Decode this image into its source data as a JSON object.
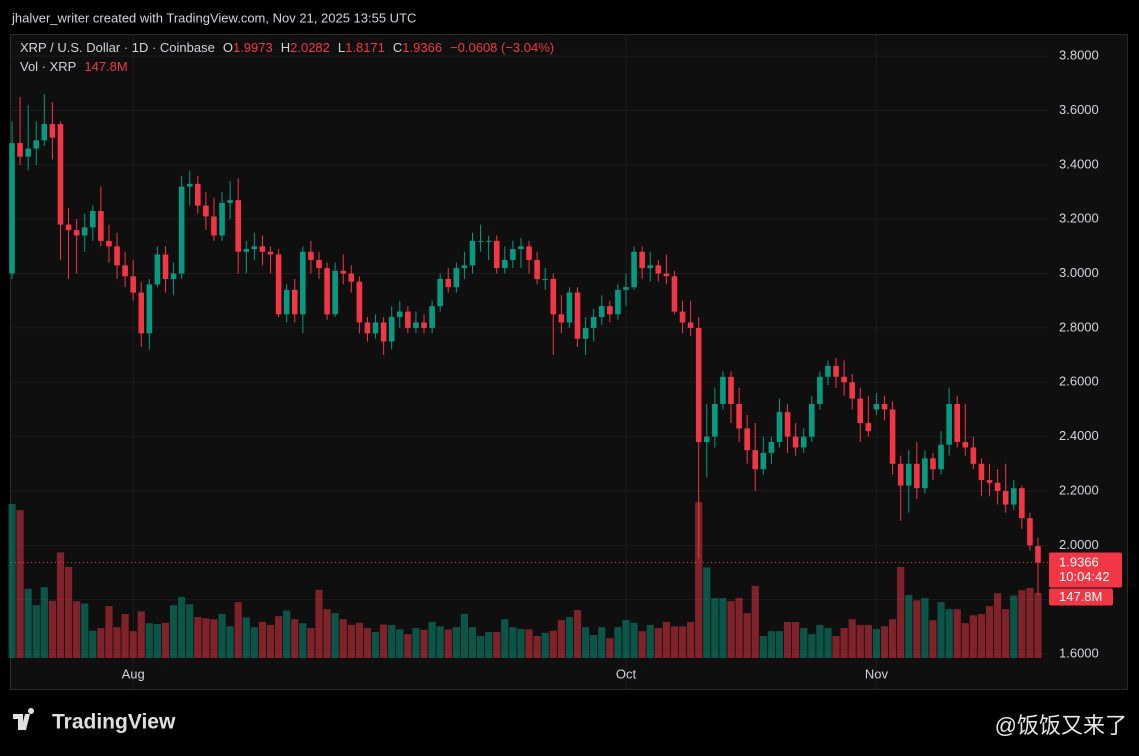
{
  "header": {
    "credit": "jhalver_writer created with TradingView.com, Nov 21, 2025 13:55 UTC"
  },
  "footer": {
    "logo": "TradingView",
    "watermark": "@饭饭又来了"
  },
  "chart_data": {
    "type": "candlestick",
    "title": "XRP / U.S. Dollar · 1D · Coinbase",
    "ohlc_labels": [
      "O",
      "H",
      "L",
      "C"
    ],
    "change_label": "−0.0608 (−3.04%)",
    "volume_title": "Vol · XRP",
    "volume_label": "147.8M",
    "countdown": "10:04:42",
    "up_color": "#089981",
    "down_color": "#f23645",
    "grid": true,
    "ylim": [
      1.475,
      3.874
    ],
    "yticks": [
      {
        "value": 1.6,
        "label": "1.6000"
      },
      {
        "value": 1.8,
        "label": "1.8000"
      },
      {
        "value": 2.0,
        "label": "2.0000"
      },
      {
        "value": 2.2,
        "label": "2.2000"
      },
      {
        "value": 2.4,
        "label": "2.4000"
      },
      {
        "value": 2.6,
        "label": "2.6000"
      },
      {
        "value": 2.8,
        "label": "2.8000"
      },
      {
        "value": 3.0,
        "label": "3.0000"
      },
      {
        "value": 3.2,
        "label": "3.2000"
      },
      {
        "value": 3.4,
        "label": "3.4000"
      },
      {
        "value": 3.6,
        "label": "3.6000"
      },
      {
        "value": 3.8,
        "label": "3.8000"
      }
    ],
    "categories": [
      null,
      null,
      null,
      null,
      null,
      null,
      null,
      null,
      null,
      null,
      null,
      null,
      null,
      null,
      null,
      "Aug",
      null,
      null,
      null,
      null,
      null,
      null,
      null,
      null,
      null,
      null,
      null,
      null,
      null,
      null,
      null,
      null,
      null,
      null,
      null,
      null,
      null,
      null,
      null,
      null,
      null,
      null,
      null,
      null,
      null,
      null,
      null,
      null,
      null,
      null,
      null,
      null,
      null,
      null,
      null,
      null,
      null,
      null,
      null,
      null,
      null,
      null,
      null,
      null,
      null,
      null,
      null,
      null,
      null,
      null,
      null,
      null,
      null,
      null,
      null,
      null,
      "Oct",
      null,
      null,
      null,
      null,
      null,
      null,
      null,
      null,
      null,
      null,
      null,
      null,
      null,
      null,
      null,
      null,
      null,
      null,
      null,
      null,
      null,
      null,
      null,
      null,
      null,
      null,
      null,
      null,
      null,
      null,
      "Nov",
      null,
      null,
      null,
      null,
      null,
      null,
      null,
      null,
      null,
      null,
      null,
      null,
      null,
      null,
      null,
      null,
      null,
      null,
      null,
      null
    ],
    "open": [
      3.0,
      3.48,
      3.43,
      3.46,
      3.49,
      3.55,
      3.55,
      3.18,
      3.16,
      3.14,
      3.17,
      3.23,
      3.12,
      3.1,
      3.03,
      2.99,
      2.93,
      2.78,
      2.96,
      3.07,
      2.98,
      3.0,
      3.32,
      3.33,
      3.25,
      3.21,
      3.14,
      3.26,
      3.27,
      3.08,
      3.09,
      3.1,
      3.08,
      3.07,
      2.85,
      2.94,
      2.85,
      3.08,
      3.05,
      3.02,
      2.85,
      3.01,
      3.0,
      2.97,
      2.82,
      2.78,
      2.82,
      2.75,
      2.84,
      2.86,
      2.8,
      2.82,
      2.8,
      2.88,
      2.98,
      2.95,
      3.02,
      3.03,
      3.12,
      3.12,
      3.12,
      3.02,
      3.05,
      3.09,
      3.1,
      3.05,
      2.98,
      2.98,
      2.85,
      2.82,
      2.93,
      2.76,
      2.8,
      2.84,
      2.88,
      2.85,
      2.94,
      2.95,
      3.08,
      3.02,
      3.03,
      3.0,
      2.99,
      2.86,
      2.82,
      2.8,
      2.38,
      2.4,
      2.52,
      2.62,
      2.52,
      2.43,
      2.35,
      2.28,
      2.34,
      2.38,
      2.49,
      2.4,
      2.36,
      2.4,
      2.52,
      2.62,
      2.66,
      2.62,
      2.6,
      2.54,
      2.45,
      2.5,
      2.52,
      2.5,
      2.3,
      2.22,
      2.3,
      2.21,
      2.32,
      2.28,
      2.37,
      2.52,
      2.38,
      2.36,
      2.3,
      2.24,
      2.23,
      2.2,
      2.15,
      2.21,
      2.1,
      1.9973
    ],
    "high": [
      3.56,
      3.65,
      3.62,
      3.56,
      3.66,
      3.63,
      3.56,
      3.24,
      3.2,
      3.22,
      3.25,
      3.32,
      3.18,
      3.15,
      3.08,
      3.05,
      2.97,
      2.98,
      3.1,
      3.1,
      3.04,
      3.36,
      3.38,
      3.36,
      3.3,
      3.28,
      3.3,
      3.34,
      3.35,
      3.12,
      3.15,
      3.14,
      3.1,
      3.09,
      2.96,
      2.98,
      3.1,
      3.12,
      3.08,
      3.04,
      3.04,
      3.07,
      3.03,
      2.99,
      2.84,
      2.85,
      2.84,
      2.88,
      2.9,
      2.88,
      2.86,
      2.85,
      2.9,
      3.0,
      3.02,
      3.04,
      3.08,
      3.15,
      3.18,
      3.14,
      3.14,
      3.1,
      3.12,
      3.13,
      3.12,
      3.08,
      3.02,
      3.0,
      2.92,
      2.95,
      2.95,
      2.84,
      2.87,
      2.92,
      2.9,
      2.96,
      3.0,
      3.1,
      3.1,
      3.08,
      3.05,
      3.07,
      3.01,
      2.9,
      2.9,
      2.84,
      2.52,
      2.58,
      2.64,
      2.64,
      2.58,
      2.48,
      2.45,
      2.4,
      2.4,
      2.54,
      2.52,
      2.45,
      2.43,
      2.55,
      2.64,
      2.68,
      2.69,
      2.68,
      2.63,
      2.58,
      2.55,
      2.56,
      2.55,
      2.53,
      2.33,
      2.35,
      2.38,
      2.35,
      2.34,
      2.42,
      2.58,
      2.55,
      2.52,
      2.4,
      2.32,
      2.3,
      2.28,
      2.3,
      2.24,
      2.22,
      2.12,
      2.0282
    ],
    "low": [
      2.98,
      3.4,
      3.38,
      3.4,
      3.47,
      3.42,
      3.05,
      2.98,
      3.0,
      3.08,
      3.12,
      3.1,
      3.04,
      2.98,
      2.95,
      2.9,
      2.73,
      2.72,
      2.95,
      2.93,
      2.92,
      2.98,
      3.25,
      3.22,
      3.16,
      3.12,
      3.12,
      3.2,
      3.0,
      3.0,
      3.05,
      3.03,
      3.0,
      2.84,
      2.82,
      2.82,
      2.78,
      3.0,
      2.98,
      2.83,
      2.84,
      2.96,
      2.93,
      2.78,
      2.75,
      2.76,
      2.7,
      2.72,
      2.8,
      2.78,
      2.78,
      2.78,
      2.78,
      2.86,
      2.93,
      2.93,
      2.98,
      3.0,
      3.08,
      3.05,
      3.0,
      3.0,
      3.02,
      3.02,
      3.0,
      2.96,
      2.94,
      2.7,
      2.78,
      2.8,
      2.73,
      2.7,
      2.75,
      2.81,
      2.82,
      2.83,
      2.88,
      2.94,
      2.98,
      2.97,
      2.97,
      2.96,
      2.85,
      2.78,
      2.77,
      1.95,
      2.25,
      2.36,
      2.5,
      2.45,
      2.38,
      2.3,
      2.2,
      2.26,
      2.3,
      2.36,
      2.34,
      2.33,
      2.34,
      2.38,
      2.5,
      2.59,
      2.58,
      2.55,
      2.5,
      2.38,
      2.4,
      2.48,
      2.46,
      2.26,
      2.09,
      2.12,
      2.17,
      2.19,
      2.24,
      2.26,
      2.33,
      2.36,
      2.33,
      2.28,
      2.18,
      2.18,
      2.15,
      2.12,
      2.13,
      2.06,
      1.98,
      1.8171
    ],
    "close": [
      3.48,
      3.43,
      3.46,
      3.49,
      3.55,
      3.5,
      3.18,
      3.16,
      3.14,
      3.17,
      3.23,
      3.12,
      3.1,
      3.03,
      2.99,
      2.93,
      2.78,
      2.96,
      3.07,
      2.98,
      3.0,
      3.32,
      3.33,
      3.25,
      3.21,
      3.14,
      3.26,
      3.27,
      3.08,
      3.09,
      3.1,
      3.08,
      3.07,
      2.85,
      2.94,
      2.85,
      3.08,
      3.05,
      3.02,
      2.85,
      3.01,
      3.0,
      2.97,
      2.82,
      2.78,
      2.82,
      2.75,
      2.84,
      2.86,
      2.8,
      2.82,
      2.8,
      2.88,
      2.98,
      2.95,
      3.02,
      3.03,
      3.12,
      3.12,
      3.12,
      3.02,
      3.05,
      3.09,
      3.1,
      3.05,
      2.98,
      2.98,
      2.85,
      2.82,
      2.93,
      2.76,
      2.8,
      2.84,
      2.88,
      2.85,
      2.94,
      2.95,
      3.08,
      3.02,
      3.03,
      3.0,
      2.99,
      2.86,
      2.82,
      2.8,
      2.38,
      2.4,
      2.52,
      2.62,
      2.52,
      2.43,
      2.35,
      2.28,
      2.34,
      2.38,
      2.49,
      2.4,
      2.36,
      2.4,
      2.52,
      2.62,
      2.66,
      2.62,
      2.6,
      2.54,
      2.45,
      2.42,
      2.52,
      2.5,
      2.3,
      2.22,
      2.3,
      2.21,
      2.32,
      2.28,
      2.37,
      2.52,
      2.38,
      2.36,
      2.3,
      2.24,
      2.23,
      2.2,
      2.15,
      2.21,
      2.1,
      2.0,
      1.9366
    ],
    "volume": [
      350,
      336,
      157,
      120,
      161,
      130,
      240,
      207,
      129,
      124,
      62,
      68,
      118,
      70,
      100,
      61,
      106,
      79,
      77,
      80,
      120,
      139,
      122,
      93,
      90,
      88,
      100,
      72,
      127,
      92,
      70,
      82,
      75,
      95,
      108,
      88,
      79,
      68,
      155,
      111,
      102,
      88,
      75,
      80,
      68,
      59,
      76,
      75,
      65,
      54,
      68,
      64,
      82,
      72,
      65,
      70,
      100,
      70,
      50,
      59,
      59,
      88,
      70,
      66,
      65,
      50,
      57,
      62,
      86,
      93,
      109,
      70,
      52,
      70,
      45,
      70,
      86,
      80,
      61,
      75,
      68,
      82,
      72,
      72,
      82,
      354,
      206,
      136,
      136,
      129,
      136,
      102,
      164,
      50,
      61,
      61,
      82,
      82,
      68,
      54,
      75,
      68,
      50,
      68,
      88,
      75,
      75,
      66,
      72,
      88,
      207,
      143,
      131,
      136,
      86,
      127,
      111,
      111,
      79,
      97,
      100,
      118,
      147,
      111,
      142,
      154,
      159,
      147.8
    ]
  }
}
